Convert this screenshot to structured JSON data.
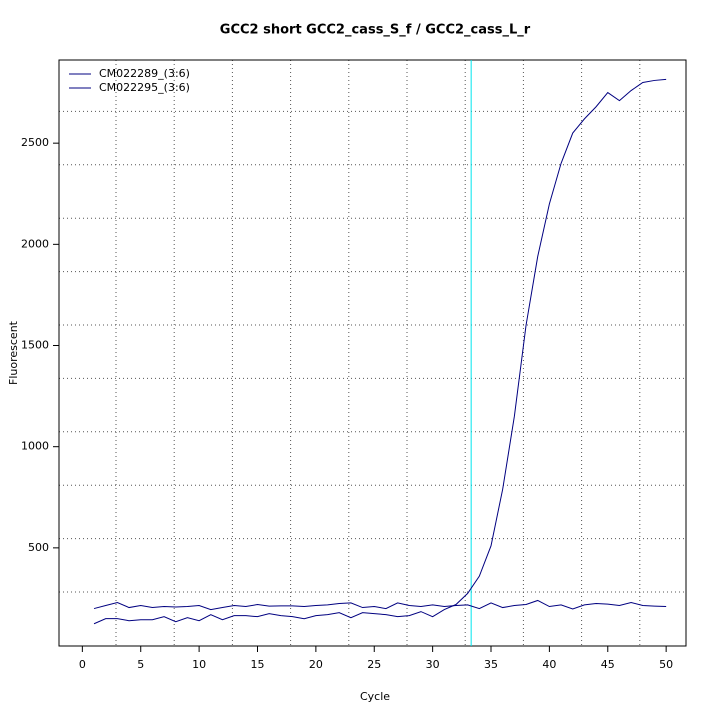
{
  "chart_data": {
    "type": "line",
    "title": "GCC2 short GCC2_cass_S_f / GCC2_cass_L_r",
    "x_label": "Cycle",
    "y_label": "Fluorescent",
    "x": [
      1,
      2,
      3,
      4,
      5,
      6,
      7,
      8,
      9,
      10,
      11,
      12,
      13,
      14,
      15,
      16,
      17,
      18,
      19,
      20,
      21,
      22,
      23,
      24,
      25,
      26,
      27,
      28,
      29,
      30,
      31,
      32,
      33,
      34,
      35,
      36,
      37,
      38,
      39,
      40,
      41,
      42,
      43,
      44,
      45,
      46,
      47,
      48,
      49,
      50
    ],
    "series": [
      {
        "name": "CM022289_(3:6)",
        "color": "#000080",
        "values": [
          125,
          150,
          150,
          140,
          145,
          145,
          160,
          135,
          155,
          140,
          170,
          145,
          165,
          165,
          160,
          175,
          165,
          160,
          150,
          165,
          170,
          180,
          155,
          180,
          175,
          170,
          160,
          165,
          185,
          160,
          195,
          220,
          275,
          360,
          510,
          790,
          1150,
          1600,
          1940,
          2200,
          2400,
          2550,
          2620,
          2680,
          2750,
          2710,
          2760,
          2800,
          2810,
          2815
        ]
      },
      {
        "name": "CM022295_(3:6)",
        "color": "#000080",
        "values": [
          200,
          215,
          230,
          205,
          215,
          205,
          210,
          208,
          210,
          215,
          195,
          205,
          215,
          210,
          220,
          212,
          213,
          213,
          210,
          215,
          218,
          225,
          228,
          205,
          210,
          200,
          228,
          215,
          210,
          218,
          210,
          215,
          218,
          200,
          228,
          205,
          215,
          220,
          240,
          210,
          218,
          198,
          218,
          225,
          222,
          215,
          230,
          215,
          212,
          210
        ]
      }
    ],
    "threshold_x": 33.3,
    "threshold_color": "#00e5ee",
    "xlim": [
      -2,
      51.7
    ],
    "ylim": [
      15,
      2911
    ],
    "xticks": [
      0,
      5,
      10,
      15,
      20,
      25,
      30,
      35,
      40,
      45,
      50
    ],
    "yticks": [
      500,
      1000,
      1500,
      2000,
      2500
    ],
    "grid": true,
    "legend": "top-left"
  }
}
